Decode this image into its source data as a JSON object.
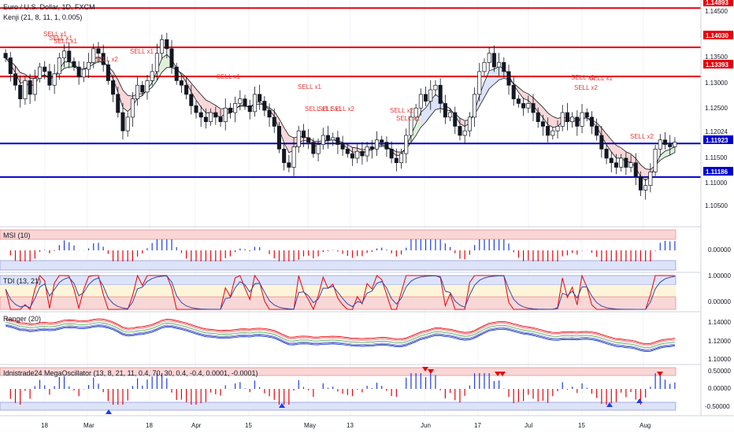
{
  "main": {
    "title": "Euro / U.S. Dollar, 1D, FXCM",
    "indicator": "Kenji (21, 8, 11, 1, 0.005)"
  },
  "price_labels": {
    "top_red": "1.14893",
    "upper_red": "1.14030",
    "mid_red": "1.13393",
    "upper_blue": "1.11923",
    "lower_blue": "1.11186"
  },
  "price_axis_ticks": [
    "1.14500",
    "1.13500",
    "1.13000",
    "1.12500",
    "1.12024",
    "1.11500",
    "1.11000",
    "1.10500"
  ],
  "colors": {
    "red_line": "#e8000b",
    "blue_line": "#0000cc",
    "bull": "#ffffff",
    "bear": "#131722",
    "pink_fill": "#f8d7d7",
    "green_fill": "#dff0d8",
    "blue_fill": "#dde3f8"
  },
  "panels": {
    "msi": {
      "title": "MSI (10)",
      "tick": "0.00000"
    },
    "tdi": {
      "title": "TDI (13, 21)",
      "ticks": [
        "1.00000",
        "0.00000"
      ]
    },
    "ranger": {
      "title": "Ranger (20)",
      "ticks": [
        "1.14000",
        "1.12000",
        "1.10000"
      ]
    },
    "mega": {
      "title": "Idnistrade24 MegaOscillator (13, 8, 21, 11, 0.4, 70, 30, 0.4, -0.4, 0.0001, -0.0001)",
      "ticks": [
        "0.50000",
        "0.00000",
        "-0.50000"
      ]
    }
  },
  "time_axis": [
    "18",
    "Mar",
    "18",
    "Apr",
    "15",
    "May",
    "13",
    "Jun",
    "17",
    "Jul",
    "15",
    "Aug"
  ],
  "chart_data": {
    "type": "candlestick",
    "y_range": [
      1.102,
      1.15
    ],
    "horizontal_levels": [
      1.14893,
      1.1403,
      1.13393,
      1.11923,
      1.11186
    ],
    "sell_signals": [
      "SELL x1",
      "SELL x1",
      "SELL x1",
      "SELL x2",
      "SELL x1",
      "SELL x1",
      "SELL x1",
      "SELL x1",
      "SELL x1",
      "SELL x2",
      "SELL x2",
      "SELL x1",
      "SELL x1",
      "SELL x2",
      "SELL x1",
      "SELL x2"
    ],
    "closes": [
      1.138,
      1.1345,
      1.132,
      1.129,
      1.133,
      1.13,
      1.1335,
      1.136,
      1.135,
      1.132,
      1.1345,
      1.138,
      1.1395,
      1.1372,
      1.136,
      1.1338,
      1.1355,
      1.137,
      1.14,
      1.139,
      1.1365,
      1.133,
      1.13,
      1.126,
      1.122,
      1.125,
      1.129,
      1.132,
      1.1305,
      1.133,
      1.135,
      1.139,
      1.142,
      1.14,
      1.136,
      1.133,
      1.132,
      1.13,
      1.1275,
      1.126,
      1.125,
      1.124,
      1.126,
      1.125,
      1.124,
      1.127,
      1.126,
      1.128,
      1.129,
      1.1275,
      1.1262,
      1.13,
      1.1285,
      1.1265,
      1.125,
      1.123,
      1.118,
      1.115,
      1.114,
      1.1185,
      1.122,
      1.1205,
      1.1195,
      1.117,
      1.119,
      1.121,
      1.12,
      1.1205,
      1.119,
      1.118,
      1.117,
      1.116,
      1.1175,
      1.1165,
      1.1185,
      1.118,
      1.12,
      1.1195,
      1.118,
      1.116,
      1.115,
      1.117,
      1.121,
      1.125,
      1.127,
      1.13,
      1.1285,
      1.131,
      1.132,
      1.128,
      1.125,
      1.126,
      1.123,
      1.121,
      1.122,
      1.125,
      1.13,
      1.135,
      1.137,
      1.139,
      1.136,
      1.137,
      1.135,
      1.132,
      1.129,
      1.128,
      1.127,
      1.128,
      1.126,
      1.124,
      1.123,
      1.121,
      1.122,
      1.123,
      1.126,
      1.124,
      1.125,
      1.123,
      1.126,
      1.125,
      1.123,
      1.121,
      1.118,
      1.116,
      1.115,
      1.114,
      1.116,
      1.114,
      1.115,
      1.112,
      1.109,
      1.11,
      1.113,
      1.118,
      1.12,
      1.119,
      1.1185,
      1.1195
    ]
  }
}
